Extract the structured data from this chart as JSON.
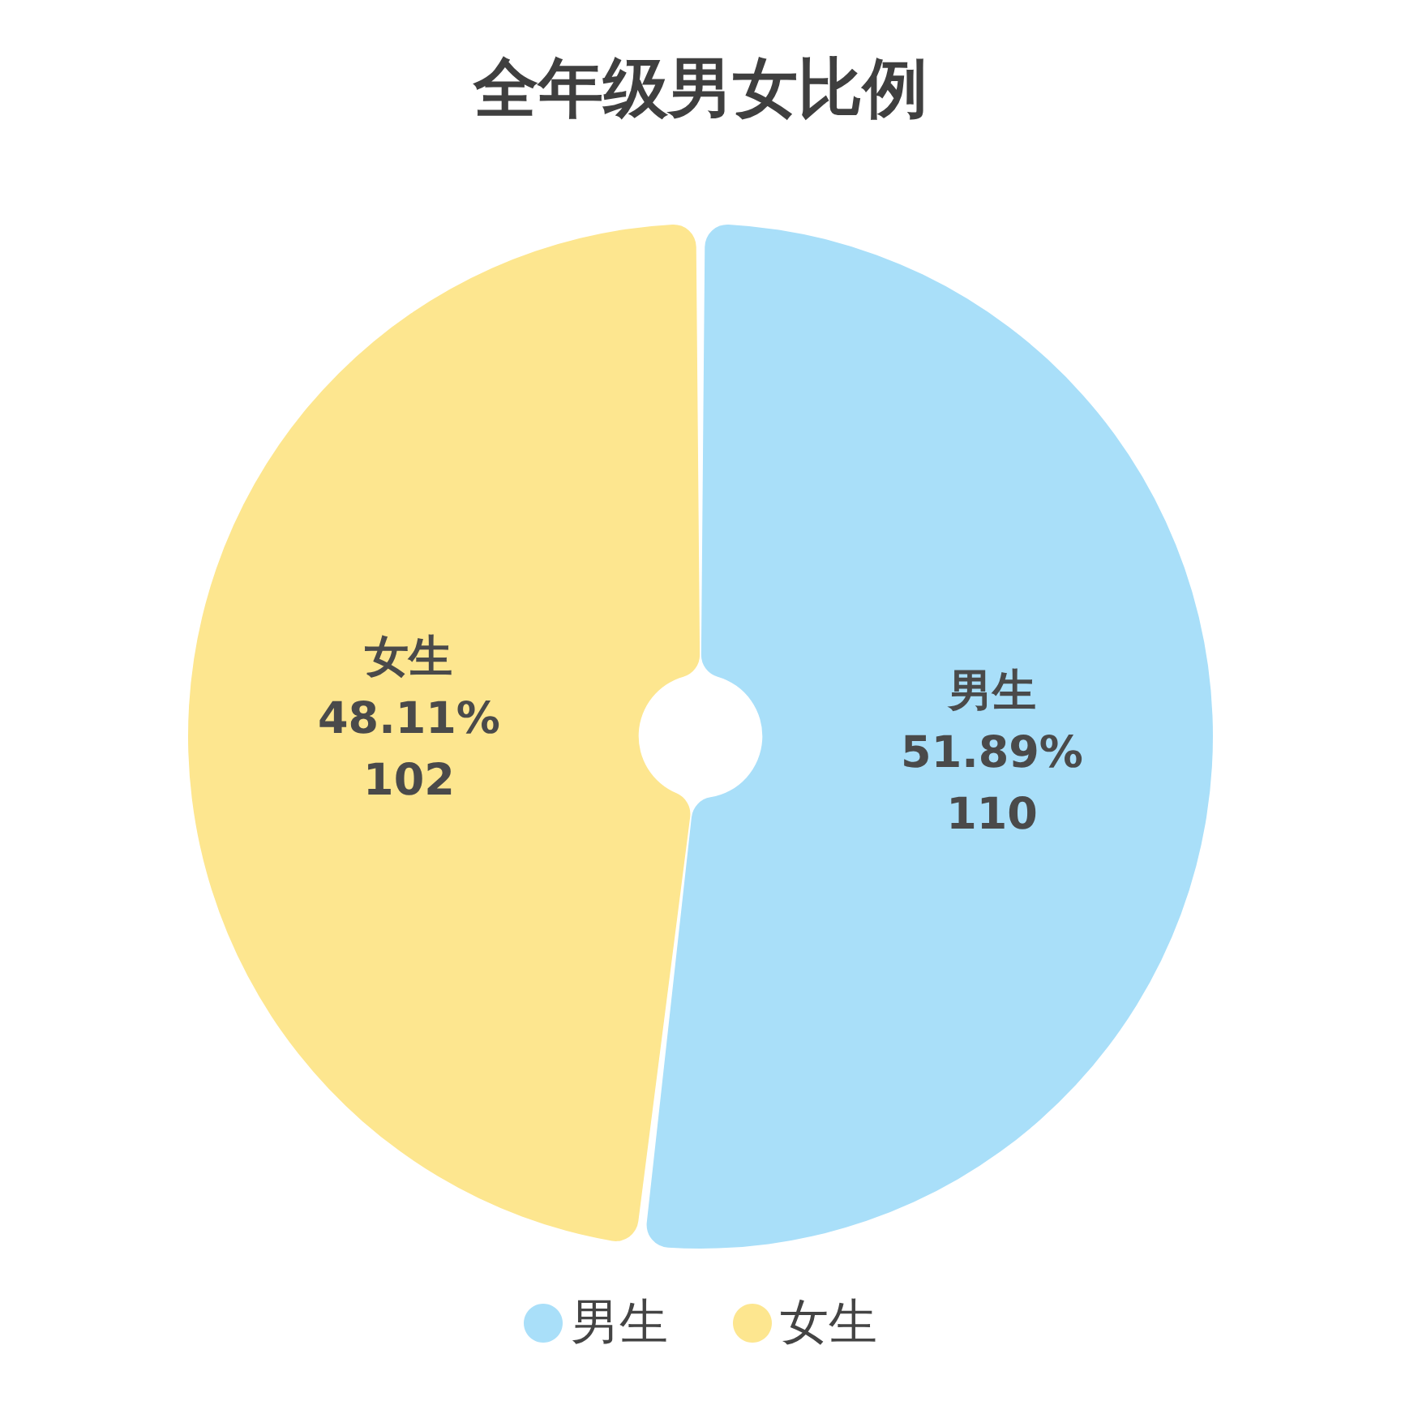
{
  "chart_data": {
    "type": "donut",
    "title": "全年级男女比例",
    "categories": [
      "男生",
      "女生"
    ],
    "values": [
      51.89,
      48.11
    ],
    "value_labels": [
      "51.89%\n110",
      "48.11%\n102"
    ],
    "colors": [
      "#a9dff9",
      "#fde68f"
    ],
    "legend": "bottom"
  }
}
